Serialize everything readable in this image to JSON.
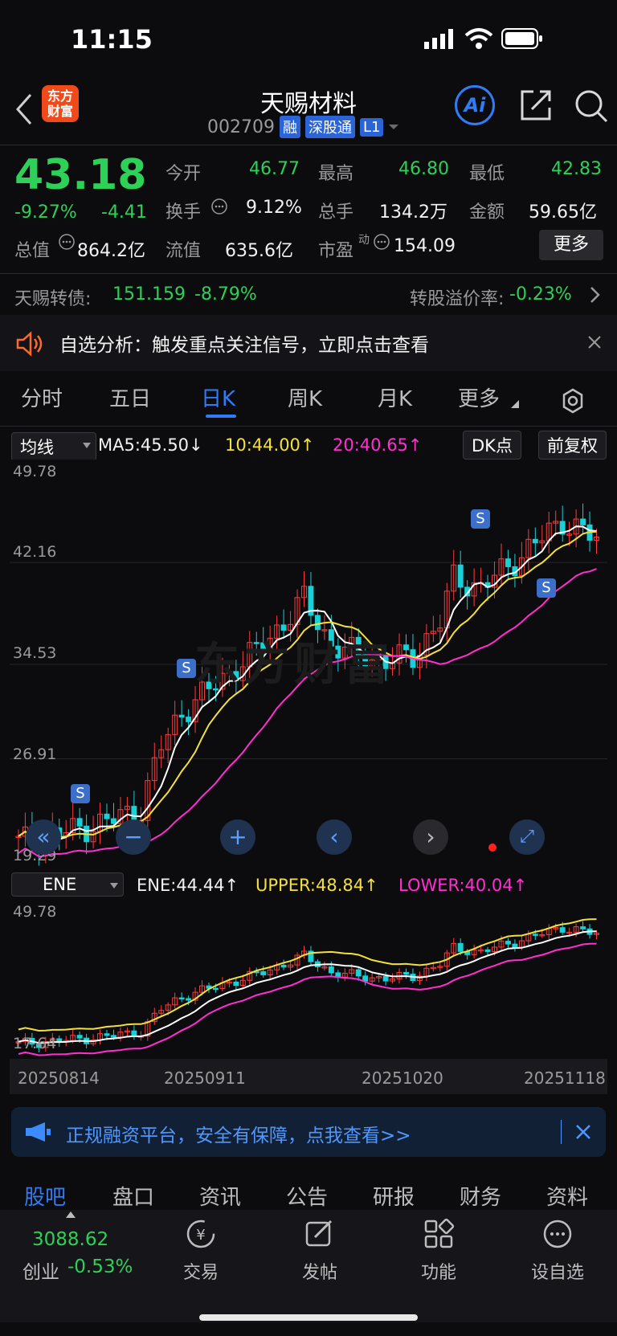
{
  "status": {
    "time": "11:15"
  },
  "header": {
    "logo_line1": "东方",
    "logo_line2": "财富",
    "title": "天赐材料",
    "code": "002709",
    "tags": [
      "融",
      "深股通",
      "L1"
    ],
    "ai_label": "Ai"
  },
  "quote": {
    "price": "43.18",
    "change_pct": "-9.27%",
    "change": "-4.41",
    "open_label": "今开",
    "open": "46.77",
    "high_label": "最高",
    "high": "46.80",
    "low_label": "最低",
    "low": "42.83",
    "turnover_label": "换手",
    "turnover": "9.12%",
    "volume_label": "总手",
    "volume": "134.2万",
    "amount_label": "金额",
    "amount": "59.65亿",
    "mktcap_label": "总值",
    "mktcap": "864.2亿",
    "float_label": "流值",
    "float": "635.6亿",
    "pe_label": "市盈",
    "pe_sup": "动",
    "pe": "154.09",
    "more_label": "更多"
  },
  "bond": {
    "name": "天赐转债:",
    "price": "151.159",
    "change": "-8.79%",
    "premium_label": "转股溢价率:",
    "premium": "-0.23%"
  },
  "alert": {
    "text": "自选分析：触发重点关注信号，立即点击查看"
  },
  "tabs": [
    "分时",
    "五日",
    "日K",
    "周K",
    "月K",
    "更多"
  ],
  "active_tab": "日K",
  "kline": {
    "ma_select": "均线",
    "ma5": "MA5:45.50↓",
    "ma10": "10:44.00↑",
    "ma20": "20:40.65↑",
    "dk_label": "DK点",
    "adjust_label": "前复权",
    "y_labels": [
      "49.78",
      "42.16",
      "34.53",
      "26.91",
      "19.29"
    ],
    "signal_label": "S",
    "watermark": "东方财富"
  },
  "ene": {
    "select": "ENE",
    "ene": "ENE:44.44↑",
    "upper": "UPPER:48.84↑",
    "lower": "LOWER:40.04↑",
    "y_top": "49.78",
    "y_bottom": "17.64",
    "dates": [
      "20250814",
      "20250911",
      "20251020",
      "20251118"
    ]
  },
  "colors": {
    "up": "#ff3b3b",
    "down": "#18d1d6",
    "ma5": "#ffffff",
    "ma10": "#f3e03a",
    "ma20": "#ff2fd0",
    "accent": "#2f7cf6"
  },
  "banner": {
    "text": "正规融资平台，安全有保障，点我查看>>"
  },
  "bottom_tabs": [
    "股吧",
    "盘口",
    "资讯",
    "公告",
    "研报",
    "财务",
    "资料"
  ],
  "index": {
    "value": "3088.62",
    "name": "创业",
    "change": "-0.53%"
  },
  "nav": [
    "交易",
    "发帖",
    "功能",
    "设自选"
  ]
}
